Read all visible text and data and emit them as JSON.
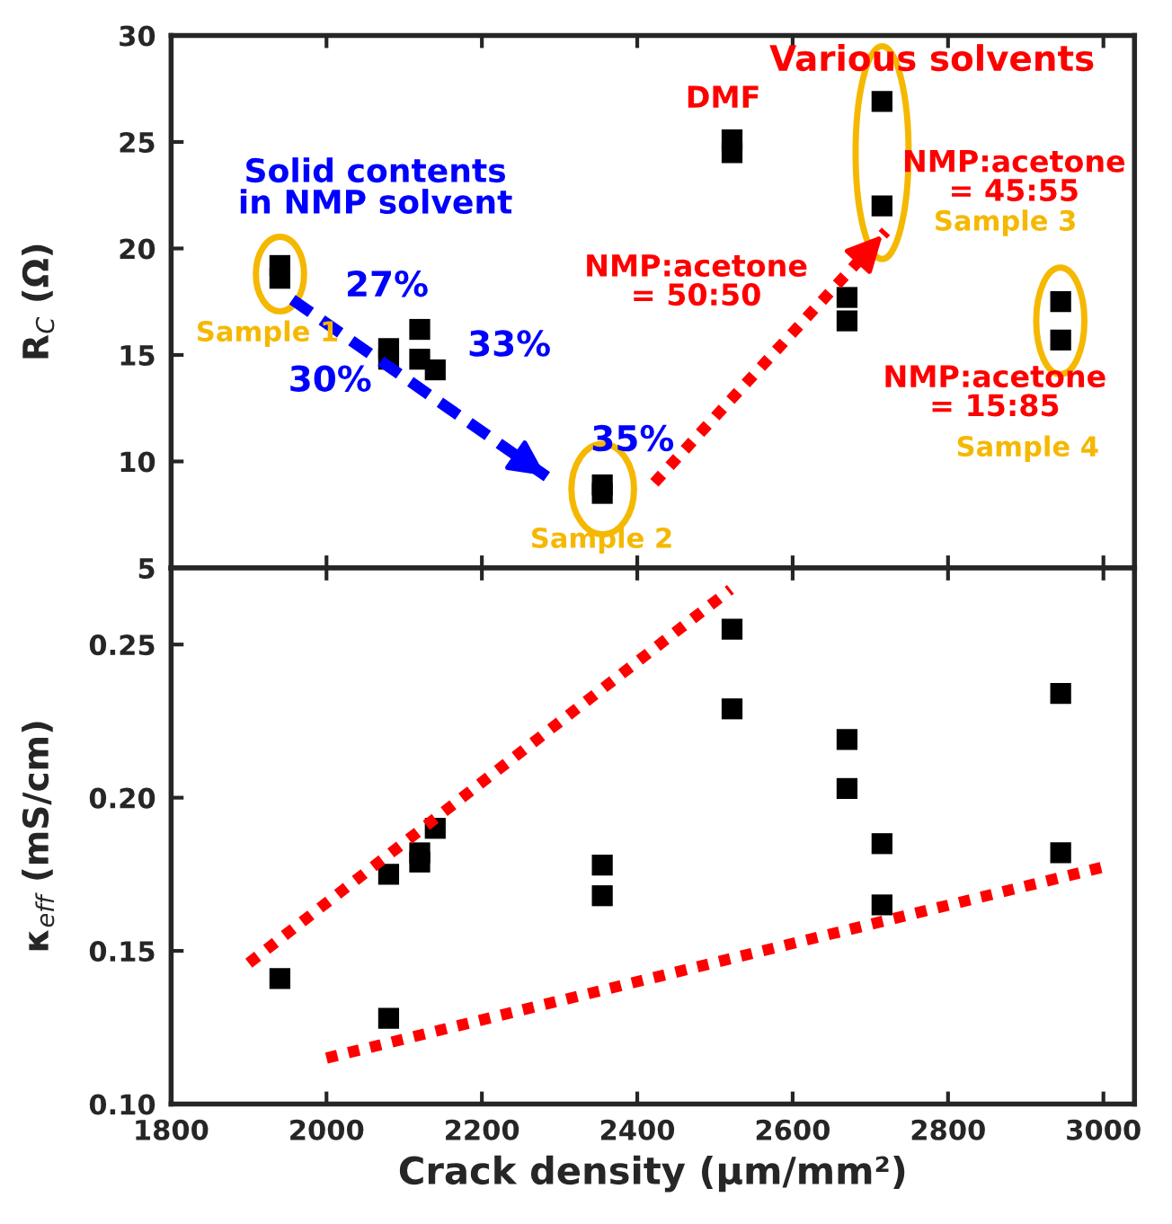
{
  "chart_data": [
    {
      "type": "scatter",
      "ylabel": "R$_{C}$ (Ω)",
      "xlim": [
        1800,
        3040
      ],
      "xticks": [
        1800,
        2000,
        2200,
        2400,
        2600,
        2800,
        3000
      ],
      "ylim": [
        5,
        30
      ],
      "yticks": [
        5,
        10,
        15,
        20,
        25,
        30
      ],
      "tick_labels": "y",
      "grid": false,
      "legend": false,
      "marker": "square",
      "series": [
        {
          "color": "#000000",
          "x": [
            1940,
            1940,
            2080,
            2080,
            2120,
            2120,
            2140,
            2355,
            2355,
            2522,
            2522,
            2670,
            2670,
            2715,
            2715,
            2945,
            2945
          ],
          "values": [
            19.2,
            18.6,
            15.3,
            14.8,
            16.2,
            14.8,
            14.3,
            8.9,
            8.5,
            25.1,
            24.5,
            17.7,
            16.6,
            26.9,
            22.0,
            17.5,
            15.7
          ]
        },
        {
          "type": "line",
          "marker": "none",
          "line_style": "dashed",
          "color": "#0000ff",
          "x": [
            1956,
            2287
          ],
          "values": [
            17.6,
            9.2
          ]
        },
        {
          "type": "line",
          "marker": "none",
          "line_style": "dotted",
          "color": "#ff0000",
          "x": [
            2422,
            2720
          ],
          "values": [
            9.0,
            20.8
          ]
        }
      ],
      "annotations": [
        "Solid contents\nin NMP solvent",
        "27%",
        "30%",
        "33%",
        "35%",
        "Various solvents",
        "DMF",
        "NMP:acetone\n= 50:50",
        "NMP:acetone\n= 45:55",
        "NMP:acetone\n= 15:85",
        "Sample 1",
        "Sample 2",
        "Sample 3",
        "Sample 4"
      ]
    },
    {
      "type": "scatter",
      "xlabel": "Crack density (μm/mm²)",
      "ylabel": "κ$_{eff}$ (mS/cm)",
      "xlim": [
        1800,
        3040
      ],
      "xticks": [
        1800,
        2000,
        2200,
        2400,
        2600,
        2800,
        3000
      ],
      "ylim": [
        0.1,
        0.275
      ],
      "yticks": [
        {
          "value": 0.1,
          "label": "0.10"
        },
        {
          "value": 0.15,
          "label": "0.15"
        },
        {
          "value": 0.2,
          "label": "0.20"
        },
        {
          "value": 0.25,
          "label": "0.25"
        }
      ],
      "grid": false,
      "legend": false,
      "marker": "square",
      "series": [
        {
          "color": "#000000",
          "x": [
            1940,
            2080,
            2080,
            2120,
            2120,
            2140,
            2355,
            2355,
            2522,
            2522,
            2670,
            2670,
            2715,
            2715,
            2945,
            2945
          ],
          "values": [
            0.141,
            0.175,
            0.128,
            0.182,
            0.179,
            0.19,
            0.178,
            0.168,
            0.255,
            0.229,
            0.219,
            0.203,
            0.185,
            0.165,
            0.234,
            0.182
          ]
        },
        {
          "type": "line",
          "marker": "none",
          "line_style": "dotted",
          "color": "#ff0000",
          "x": [
            1900,
            2520
          ],
          "values": [
            0.146,
            0.268
          ]
        },
        {
          "type": "line",
          "marker": "none",
          "line_style": "dotted",
          "color": "#ff0000",
          "x": [
            2000,
            3010
          ],
          "values": [
            0.115,
            0.178
          ]
        }
      ]
    }
  ]
}
